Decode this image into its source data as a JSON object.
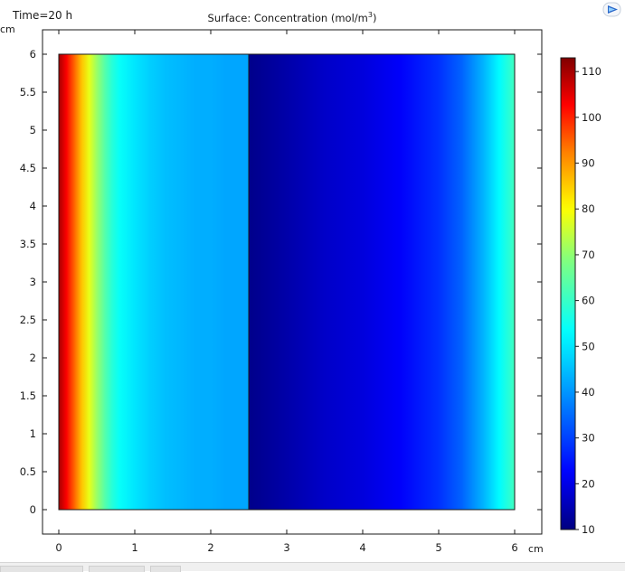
{
  "time_label": "Time=20 h",
  "chart_data": {
    "type": "heatmap",
    "title": "Surface: Concentration (mol/m",
    "title_superscript": "3",
    "title_suffix": ")",
    "xlabel": "cm",
    "ylabel": "cm",
    "xlim": [
      0,
      6
    ],
    "ylim": [
      0,
      6
    ],
    "x_ticks": [
      "0",
      "1",
      "2",
      "3",
      "4",
      "5",
      "6"
    ],
    "y_ticks": [
      "0",
      "0.5",
      "1",
      "1.5",
      "2",
      "2.5",
      "3",
      "3.5",
      "4",
      "4.5",
      "5",
      "5.5",
      "6"
    ],
    "domain_boundary_x": 2.5,
    "colorbar": {
      "min": 10,
      "max": 113,
      "ticks": [
        "10",
        "20",
        "30",
        "40",
        "50",
        "60",
        "70",
        "80",
        "90",
        "100",
        "110"
      ],
      "colormap": "rainbow"
    },
    "profile_x": [
      0,
      0.1,
      0.2,
      0.3,
      0.4,
      0.5,
      0.6,
      0.7,
      0.8,
      1.0,
      1.2,
      1.4,
      1.6,
      1.8,
      2.0,
      2.2,
      2.5,
      2.5001,
      3.0,
      3.5,
      4.0,
      4.5,
      5.0,
      5.3,
      5.6,
      5.8,
      6.0
    ],
    "profile_values": [
      110,
      103,
      95,
      86,
      78,
      71,
      64,
      58,
      54,
      50,
      47,
      45,
      44,
      43,
      43,
      42,
      42,
      11,
      14,
      17,
      19,
      22,
      28,
      34,
      44,
      53,
      61
    ]
  },
  "colors": {
    "background": "#ffffff",
    "frame": "#1a1a1a"
  }
}
